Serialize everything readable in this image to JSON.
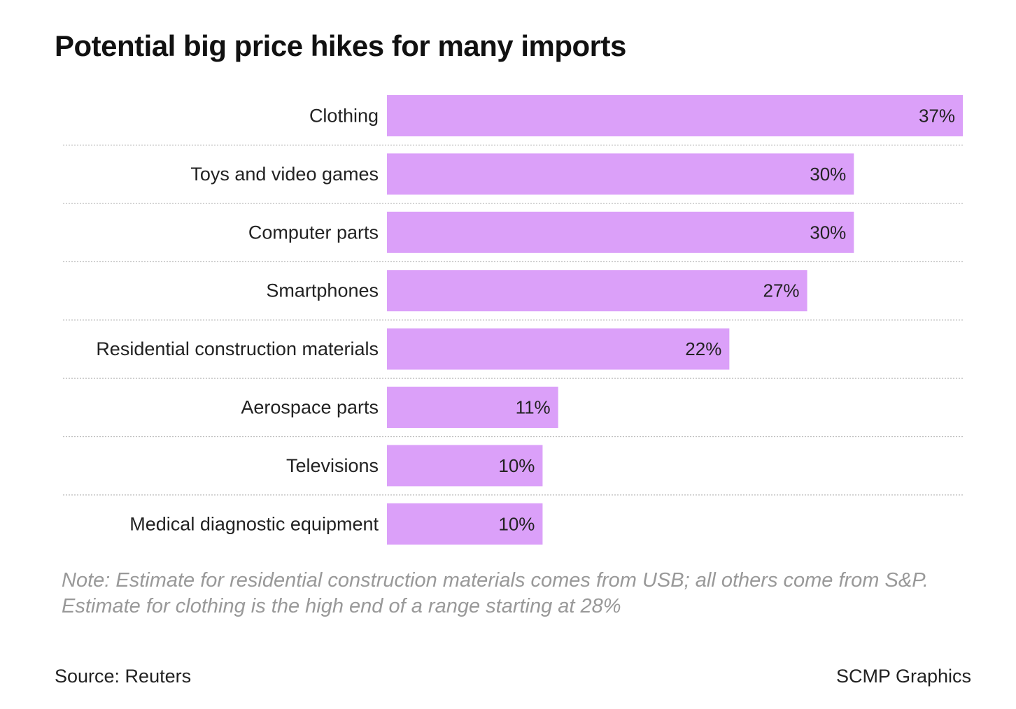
{
  "chart_data": {
    "type": "bar",
    "orientation": "horizontal",
    "title": "Potential big price hikes for many imports",
    "categories": [
      "Clothing",
      "Toys and video games",
      "Computer parts",
      "Smartphones",
      "Residential construction materials",
      "Aerospace parts",
      "Televisions",
      "Medical diagnostic equipment"
    ],
    "values": [
      37,
      30,
      30,
      27,
      22,
      11,
      10,
      10
    ],
    "value_labels": [
      "37%",
      "30%",
      "30%",
      "27%",
      "22%",
      "11%",
      "10%",
      "10%"
    ],
    "unit": "%",
    "xlim": [
      0,
      37
    ],
    "bar_color": "#dba0f9",
    "xlabel": "",
    "ylabel": ""
  },
  "note": {
    "line1": "Note: Estimate for residential construction materials comes from USB; all others come from S&P.",
    "line2": "Estimate for clothing is the high end of a range starting at 28%"
  },
  "footer": {
    "source": "Source: Reuters",
    "credit": "SCMP Graphics"
  }
}
